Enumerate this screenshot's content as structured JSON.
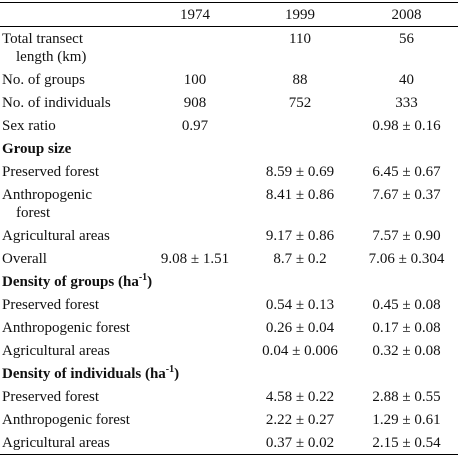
{
  "table": {
    "columns": [
      "1974",
      "1999",
      "2008"
    ],
    "sections": [
      {
        "rows": [
          {
            "label": [
              "Total transect",
              "length (km)"
            ],
            "values": [
              null,
              "110",
              "56"
            ]
          },
          {
            "label": [
              "No. of groups"
            ],
            "values": [
              "100",
              "88",
              "40"
            ]
          },
          {
            "label": [
              "No. of individuals"
            ],
            "values": [
              "908",
              "752",
              "333"
            ]
          },
          {
            "label": [
              "Sex ratio"
            ],
            "values": [
              "0.97",
              null,
              "0.98 ± 0.16"
            ]
          }
        ]
      },
      {
        "title": {
          "text": "Group size"
        },
        "rows": [
          {
            "label": [
              "Preserved forest"
            ],
            "values": [
              null,
              "8.59 ± 0.69",
              "6.45 ± 0.67"
            ]
          },
          {
            "label": [
              "Anthropogenic",
              "forest"
            ],
            "values": [
              null,
              "8.41 ± 0.86",
              "7.67 ± 0.37"
            ]
          },
          {
            "label": [
              "Agricultural areas"
            ],
            "values": [
              null,
              "9.17 ± 0.86",
              "7.57 ± 0.90"
            ]
          },
          {
            "label": [
              "Overall"
            ],
            "values": [
              "9.08 ± 1.51",
              "8.7 ± 0.2",
              "7.06 ± 0.304"
            ]
          }
        ]
      },
      {
        "title": {
          "text": "Density of groups (ha",
          "sup": "-1",
          "end": ")"
        },
        "rows": [
          {
            "label": [
              "Preserved forest"
            ],
            "values": [
              null,
              "0.54 ± 0.13",
              "0.45 ± 0.08"
            ]
          },
          {
            "label": [
              "Anthropogenic forest"
            ],
            "values": [
              null,
              "0.26 ± 0.04",
              "0.17 ± 0.08"
            ]
          },
          {
            "label": [
              "Agricultural areas"
            ],
            "values": [
              null,
              "0.04 ± 0.006",
              "0.32 ± 0.08"
            ]
          }
        ]
      },
      {
        "title": {
          "text": "Density of individuals (ha",
          "sup": "-1",
          "end": ")"
        },
        "rows": [
          {
            "label": [
              "Preserved forest"
            ],
            "values": [
              null,
              "4.58 ± 0.22",
              "2.88 ± 0.55"
            ]
          },
          {
            "label": [
              "Anthropogenic forest"
            ],
            "values": [
              null,
              "2.22 ± 0.27",
              "1.29 ± 0.61"
            ]
          },
          {
            "label": [
              "Agricultural areas"
            ],
            "values": [
              null,
              "0.37 ± 0.02",
              "2.15 ± 0.54"
            ]
          }
        ]
      }
    ]
  }
}
